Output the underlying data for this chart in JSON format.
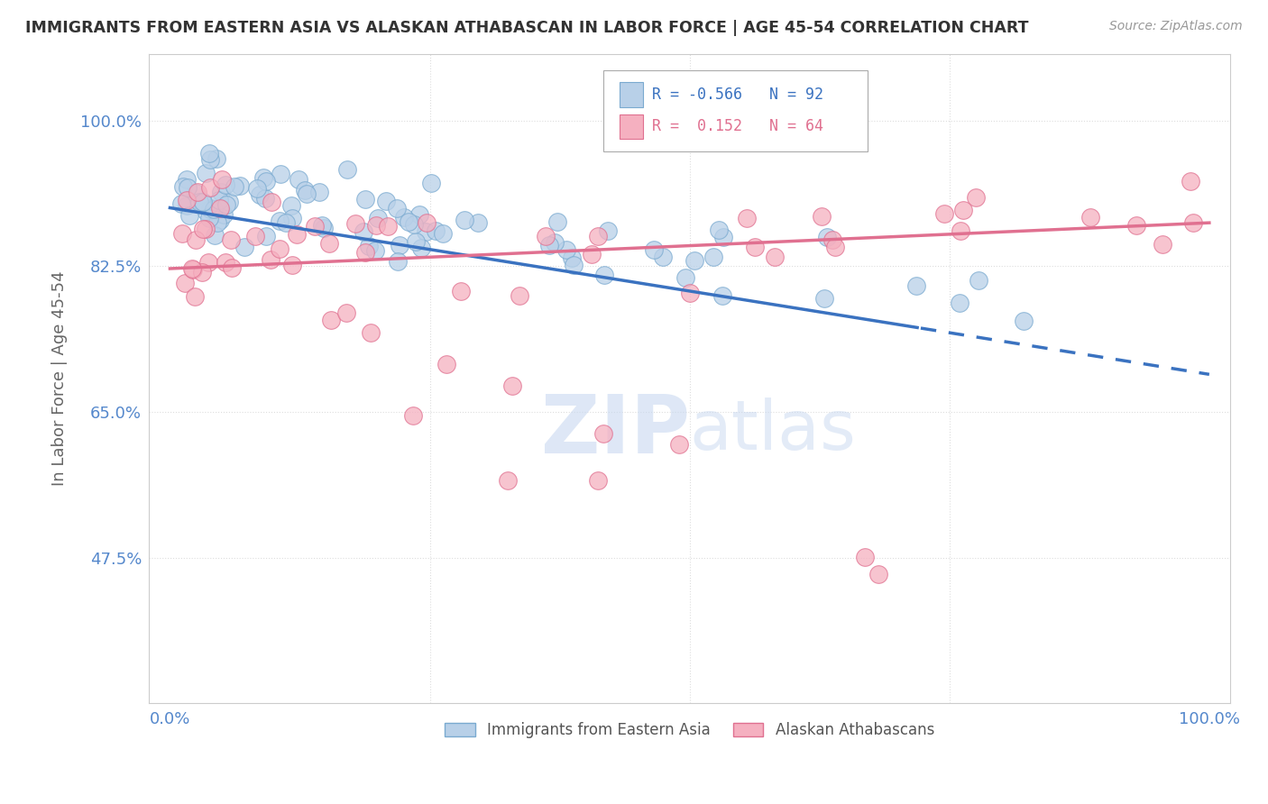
{
  "title": "IMMIGRANTS FROM EASTERN ASIA VS ALASKAN ATHABASCAN IN LABOR FORCE | AGE 45-54 CORRELATION CHART",
  "source": "Source: ZipAtlas.com",
  "ylabel": "In Labor Force | Age 45-54",
  "xlim": [
    -0.02,
    1.02
  ],
  "ylim": [
    0.3,
    1.08
  ],
  "yticks": [
    0.475,
    0.65,
    0.825,
    1.0
  ],
  "ytick_labels": [
    "47.5%",
    "65.0%",
    "82.5%",
    "100.0%"
  ],
  "blue_R": -0.566,
  "blue_N": 92,
  "pink_R": 0.152,
  "pink_N": 64,
  "blue_color": "#b8d0e8",
  "blue_edge": "#7aaad0",
  "pink_color": "#f5b0c0",
  "pink_edge": "#e07090",
  "blue_line_color": "#3a72c0",
  "pink_line_color": "#e07090",
  "grid_color": "#dddddd",
  "background_color": "#ffffff",
  "title_color": "#333333",
  "axis_label_color": "#666666",
  "tick_color": "#5588cc",
  "watermark_color": "#dde8f5",
  "legend_label_blue": "Immigrants from Eastern Asia",
  "legend_label_pink": "Alaskan Athabascans"
}
